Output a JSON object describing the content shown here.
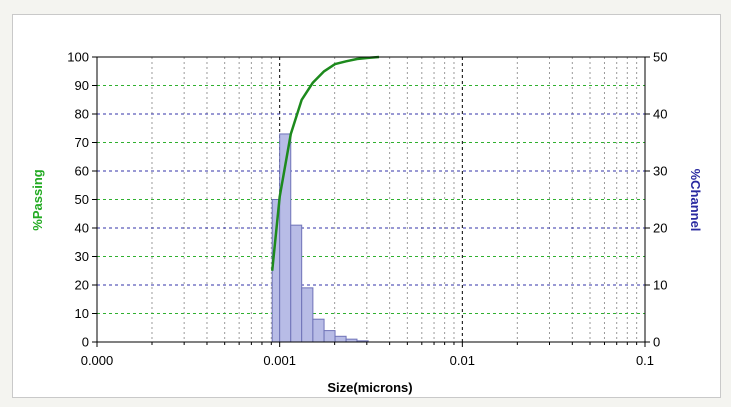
{
  "chart_data": {
    "type": "bar",
    "x_scale": "log",
    "xlim": [
      0.0001,
      0.1
    ],
    "x_ticks": [
      "0.000",
      "0.001",
      "0.01",
      "0.1"
    ],
    "xlabel": "Size(microns)",
    "ylabel_left": "%Passing",
    "ylabel_right": "%Channel",
    "ylim_left": [
      0,
      100
    ],
    "ylim_right": [
      0,
      50
    ],
    "y_ticks_left": [
      "0",
      "10",
      "20",
      "30",
      "40",
      "50",
      "60",
      "70",
      "80",
      "90",
      "100"
    ],
    "y_ticks_right": [
      "0",
      "10",
      "20",
      "30",
      "40",
      "50"
    ],
    "grid": true,
    "bar_series": {
      "axis": "right",
      "bins": [
        {
          "lo": 0.00091,
          "hi": 0.001,
          "value": 25
        },
        {
          "lo": 0.001,
          "hi": 0.00115,
          "value": 36.5
        },
        {
          "lo": 0.00115,
          "hi": 0.00132,
          "value": 20.5
        },
        {
          "lo": 0.00132,
          "hi": 0.00152,
          "value": 9.5
        },
        {
          "lo": 0.00152,
          "hi": 0.00175,
          "value": 4
        },
        {
          "lo": 0.00175,
          "hi": 0.00201,
          "value": 2
        },
        {
          "lo": 0.00201,
          "hi": 0.00231,
          "value": 1
        },
        {
          "lo": 0.00231,
          "hi": 0.00265,
          "value": 0.5
        },
        {
          "lo": 0.00265,
          "hi": 0.00305,
          "value": 0.2
        }
      ],
      "color": "#b8bce6",
      "edge": "#6f73b8"
    },
    "line_series": {
      "axis": "left",
      "x": [
        0.00091,
        0.001,
        0.00115,
        0.00132,
        0.00152,
        0.00175,
        0.00201,
        0.00231,
        0.00265,
        0.00305,
        0.0035
      ],
      "y": [
        25,
        51,
        73,
        85,
        91,
        95,
        97.5,
        98.5,
        99.3,
        99.7,
        100
      ],
      "color": "#1d8a1d"
    },
    "colors": {
      "ylabel_left": "#22aa22",
      "ylabel_right": "#2a2aa0",
      "grid_green": "#30b030",
      "grid_blue": "#3333aa"
    }
  }
}
